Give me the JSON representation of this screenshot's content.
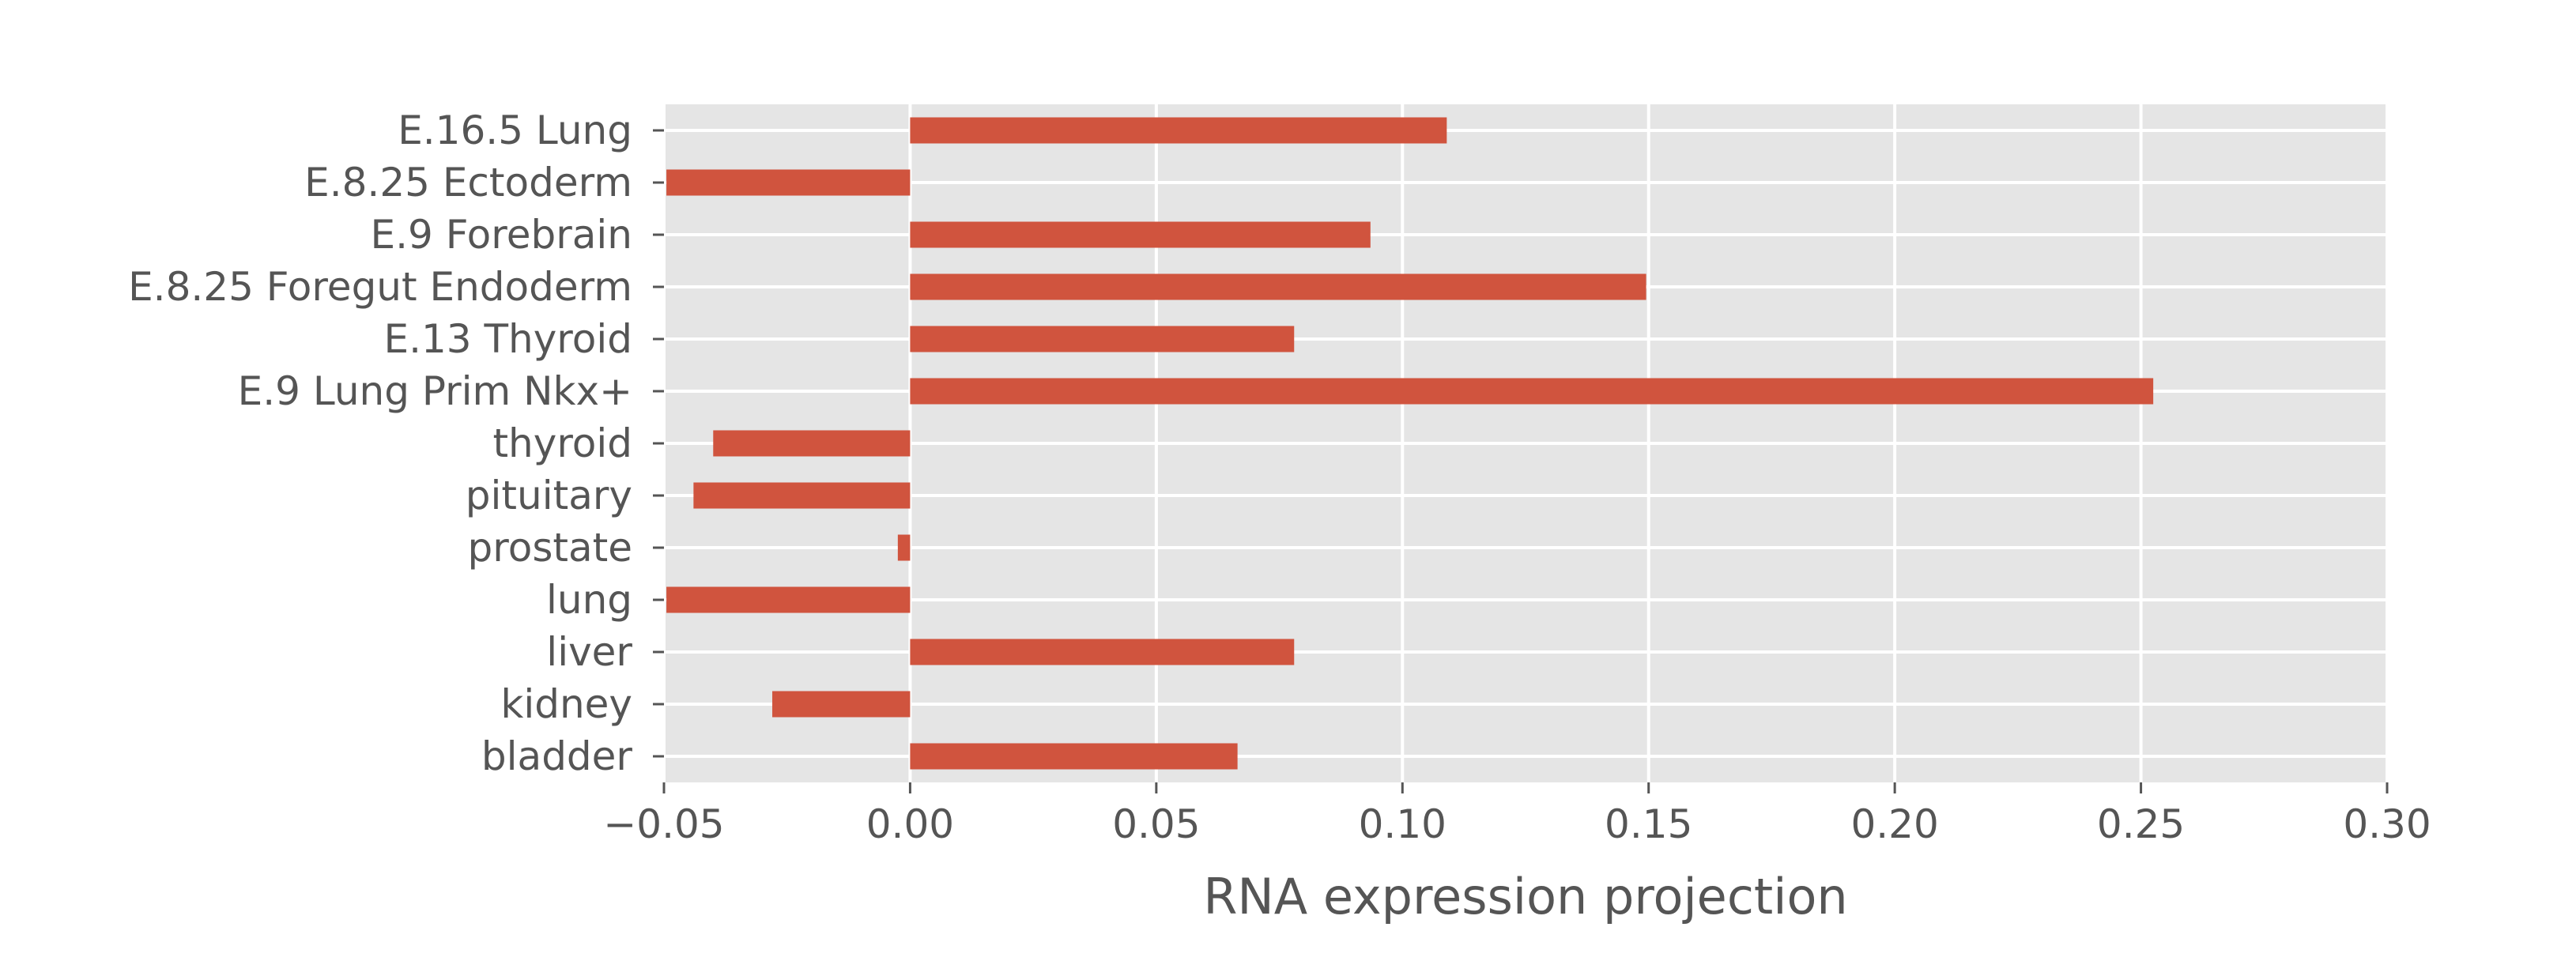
{
  "chart_data": {
    "type": "bar",
    "orientation": "horizontal",
    "categories": [
      "E.16.5 Lung",
      "E.8.25 Ectoderm",
      "E.9 Forebrain",
      "E.8.25 Foregut Endoderm",
      "E.13 Thyroid",
      "E.9 Lung Prim Nkx+",
      "thyroid",
      "pituitary",
      "prostate",
      "lung",
      "liver",
      "kidney",
      "bladder"
    ],
    "values": [
      0.109,
      -0.0495,
      0.0935,
      0.1495,
      0.078,
      0.2525,
      -0.04,
      -0.044,
      -0.0025,
      -0.0495,
      0.078,
      -0.028,
      0.0665
    ],
    "xlabel": "RNA expression projection",
    "ylabel": "",
    "xlim": [
      -0.05,
      0.3
    ],
    "xticks": [
      -0.05,
      0.0,
      0.05,
      0.1,
      0.15,
      0.2,
      0.25,
      0.3
    ],
    "xtick_labels": [
      "−0.05",
      "0.00",
      "0.05",
      "0.10",
      "0.15",
      "0.20",
      "0.25",
      "0.30"
    ],
    "grid": true,
    "bar_color": "#d0543e",
    "background_color": "#e5e5e5",
    "grid_color": "#ffffff"
  }
}
